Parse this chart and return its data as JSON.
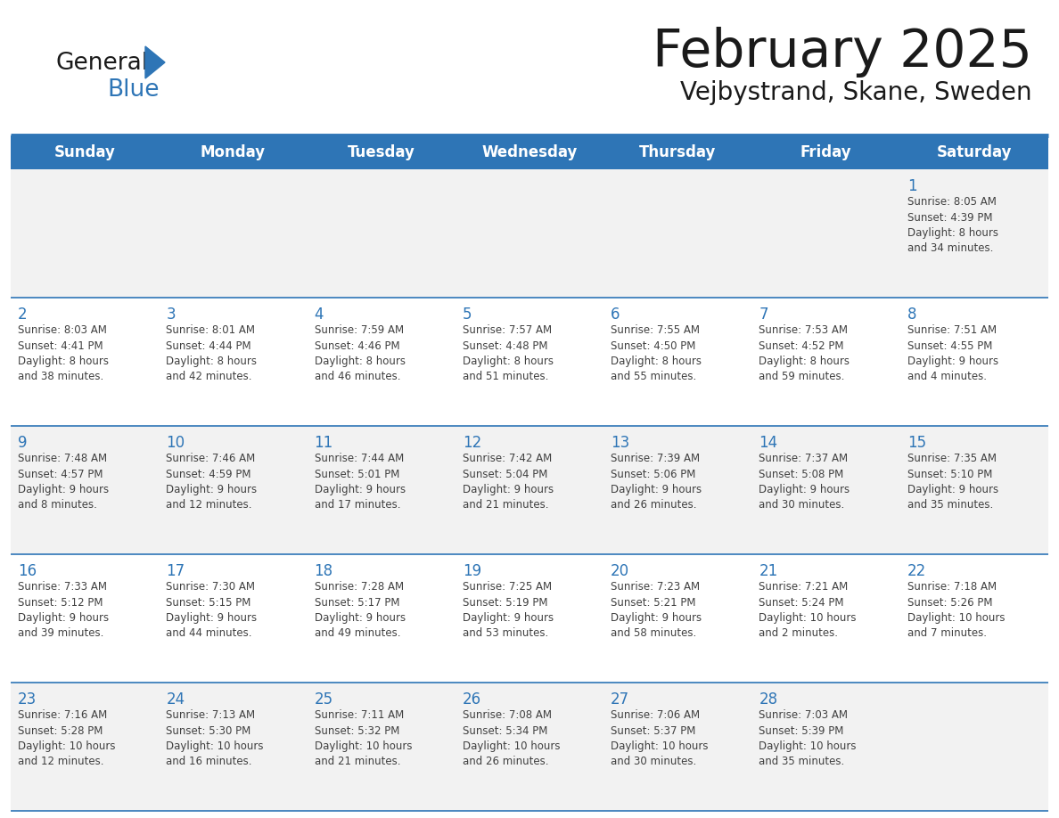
{
  "title": "February 2025",
  "subtitle": "Vejbystrand, Skane, Sweden",
  "days_of_week": [
    "Sunday",
    "Monday",
    "Tuesday",
    "Wednesday",
    "Thursday",
    "Friday",
    "Saturday"
  ],
  "header_bg": "#2E75B6",
  "header_text": "#FFFFFF",
  "row_bg_light": "#F2F2F2",
  "row_bg_white": "#FFFFFF",
  "separator_color": "#2E75B6",
  "day_number_color": "#2E75B6",
  "cell_text_color": "#404040",
  "title_color": "#1a1a1a",
  "subtitle_color": "#1a1a1a",
  "logo_general_color": "#1a1a1a",
  "logo_blue_color": "#2E75B6",
  "logo_triangle_color": "#2E75B6",
  "calendar": [
    [
      {
        "day": null,
        "info": null
      },
      {
        "day": null,
        "info": null
      },
      {
        "day": null,
        "info": null
      },
      {
        "day": null,
        "info": null
      },
      {
        "day": null,
        "info": null
      },
      {
        "day": null,
        "info": null
      },
      {
        "day": 1,
        "info": "Sunrise: 8:05 AM\nSunset: 4:39 PM\nDaylight: 8 hours\nand 34 minutes."
      }
    ],
    [
      {
        "day": 2,
        "info": "Sunrise: 8:03 AM\nSunset: 4:41 PM\nDaylight: 8 hours\nand 38 minutes."
      },
      {
        "day": 3,
        "info": "Sunrise: 8:01 AM\nSunset: 4:44 PM\nDaylight: 8 hours\nand 42 minutes."
      },
      {
        "day": 4,
        "info": "Sunrise: 7:59 AM\nSunset: 4:46 PM\nDaylight: 8 hours\nand 46 minutes."
      },
      {
        "day": 5,
        "info": "Sunrise: 7:57 AM\nSunset: 4:48 PM\nDaylight: 8 hours\nand 51 minutes."
      },
      {
        "day": 6,
        "info": "Sunrise: 7:55 AM\nSunset: 4:50 PM\nDaylight: 8 hours\nand 55 minutes."
      },
      {
        "day": 7,
        "info": "Sunrise: 7:53 AM\nSunset: 4:52 PM\nDaylight: 8 hours\nand 59 minutes."
      },
      {
        "day": 8,
        "info": "Sunrise: 7:51 AM\nSunset: 4:55 PM\nDaylight: 9 hours\nand 4 minutes."
      }
    ],
    [
      {
        "day": 9,
        "info": "Sunrise: 7:48 AM\nSunset: 4:57 PM\nDaylight: 9 hours\nand 8 minutes."
      },
      {
        "day": 10,
        "info": "Sunrise: 7:46 AM\nSunset: 4:59 PM\nDaylight: 9 hours\nand 12 minutes."
      },
      {
        "day": 11,
        "info": "Sunrise: 7:44 AM\nSunset: 5:01 PM\nDaylight: 9 hours\nand 17 minutes."
      },
      {
        "day": 12,
        "info": "Sunrise: 7:42 AM\nSunset: 5:04 PM\nDaylight: 9 hours\nand 21 minutes."
      },
      {
        "day": 13,
        "info": "Sunrise: 7:39 AM\nSunset: 5:06 PM\nDaylight: 9 hours\nand 26 minutes."
      },
      {
        "day": 14,
        "info": "Sunrise: 7:37 AM\nSunset: 5:08 PM\nDaylight: 9 hours\nand 30 minutes."
      },
      {
        "day": 15,
        "info": "Sunrise: 7:35 AM\nSunset: 5:10 PM\nDaylight: 9 hours\nand 35 minutes."
      }
    ],
    [
      {
        "day": 16,
        "info": "Sunrise: 7:33 AM\nSunset: 5:12 PM\nDaylight: 9 hours\nand 39 minutes."
      },
      {
        "day": 17,
        "info": "Sunrise: 7:30 AM\nSunset: 5:15 PM\nDaylight: 9 hours\nand 44 minutes."
      },
      {
        "day": 18,
        "info": "Sunrise: 7:28 AM\nSunset: 5:17 PM\nDaylight: 9 hours\nand 49 minutes."
      },
      {
        "day": 19,
        "info": "Sunrise: 7:25 AM\nSunset: 5:19 PM\nDaylight: 9 hours\nand 53 minutes."
      },
      {
        "day": 20,
        "info": "Sunrise: 7:23 AM\nSunset: 5:21 PM\nDaylight: 9 hours\nand 58 minutes."
      },
      {
        "day": 21,
        "info": "Sunrise: 7:21 AM\nSunset: 5:24 PM\nDaylight: 10 hours\nand 2 minutes."
      },
      {
        "day": 22,
        "info": "Sunrise: 7:18 AM\nSunset: 5:26 PM\nDaylight: 10 hours\nand 7 minutes."
      }
    ],
    [
      {
        "day": 23,
        "info": "Sunrise: 7:16 AM\nSunset: 5:28 PM\nDaylight: 10 hours\nand 12 minutes."
      },
      {
        "day": 24,
        "info": "Sunrise: 7:13 AM\nSunset: 5:30 PM\nDaylight: 10 hours\nand 16 minutes."
      },
      {
        "day": 25,
        "info": "Sunrise: 7:11 AM\nSunset: 5:32 PM\nDaylight: 10 hours\nand 21 minutes."
      },
      {
        "day": 26,
        "info": "Sunrise: 7:08 AM\nSunset: 5:34 PM\nDaylight: 10 hours\nand 26 minutes."
      },
      {
        "day": 27,
        "info": "Sunrise: 7:06 AM\nSunset: 5:37 PM\nDaylight: 10 hours\nand 30 minutes."
      },
      {
        "day": 28,
        "info": "Sunrise: 7:03 AM\nSunset: 5:39 PM\nDaylight: 10 hours\nand 35 minutes."
      },
      {
        "day": null,
        "info": null
      }
    ]
  ]
}
